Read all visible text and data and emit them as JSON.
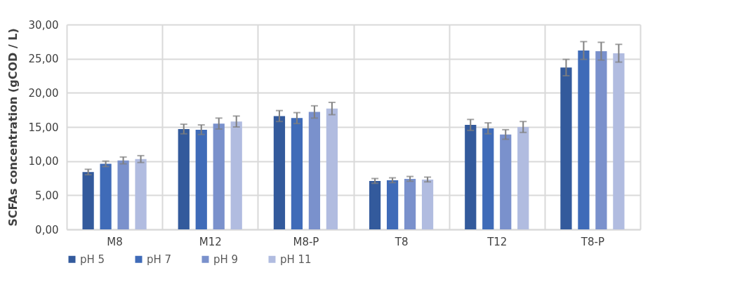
{
  "chart_data": {
    "type": "bar",
    "ylabel": "SCFAs concentration (gCOD / L)",
    "categories": [
      "M8",
      "M12",
      "M8-P",
      "T8",
      "T12",
      "T8-P"
    ],
    "series": [
      {
        "name": "pH 5",
        "color": "#335a9c",
        "values": [
          8.4,
          14.7,
          16.6,
          7.1,
          15.3,
          23.7
        ],
        "errors": [
          0.4,
          0.7,
          0.8,
          0.35,
          0.8,
          1.2
        ]
      },
      {
        "name": "pH 7",
        "color": "#3f6bb8",
        "values": [
          9.6,
          14.6,
          16.3,
          7.2,
          14.8,
          26.2
        ],
        "errors": [
          0.4,
          0.7,
          0.8,
          0.35,
          0.8,
          1.3
        ]
      },
      {
        "name": "pH 9",
        "color": "#7a91cc",
        "values": [
          10.1,
          15.5,
          17.2,
          7.4,
          13.9,
          26.1
        ],
        "errors": [
          0.5,
          0.8,
          0.9,
          0.35,
          0.7,
          1.3
        ]
      },
      {
        "name": "pH 11",
        "color": "#b1bce0",
        "values": [
          10.3,
          15.8,
          17.7,
          7.3,
          15.0,
          25.8
        ],
        "errors": [
          0.5,
          0.8,
          0.9,
          0.35,
          0.8,
          1.3
        ]
      }
    ],
    "ylim": [
      0,
      30
    ],
    "yticks": [
      {
        "value": 0,
        "label": "0,00"
      },
      {
        "value": 5,
        "label": "5,00"
      },
      {
        "value": 10,
        "label": "10,00"
      },
      {
        "value": 15,
        "label": "15,00"
      },
      {
        "value": 20,
        "label": "20,00"
      },
      {
        "value": 25,
        "label": "25,00"
      },
      {
        "value": 30,
        "label": "30,00"
      }
    ],
    "grid": true,
    "legend": "bottom"
  }
}
